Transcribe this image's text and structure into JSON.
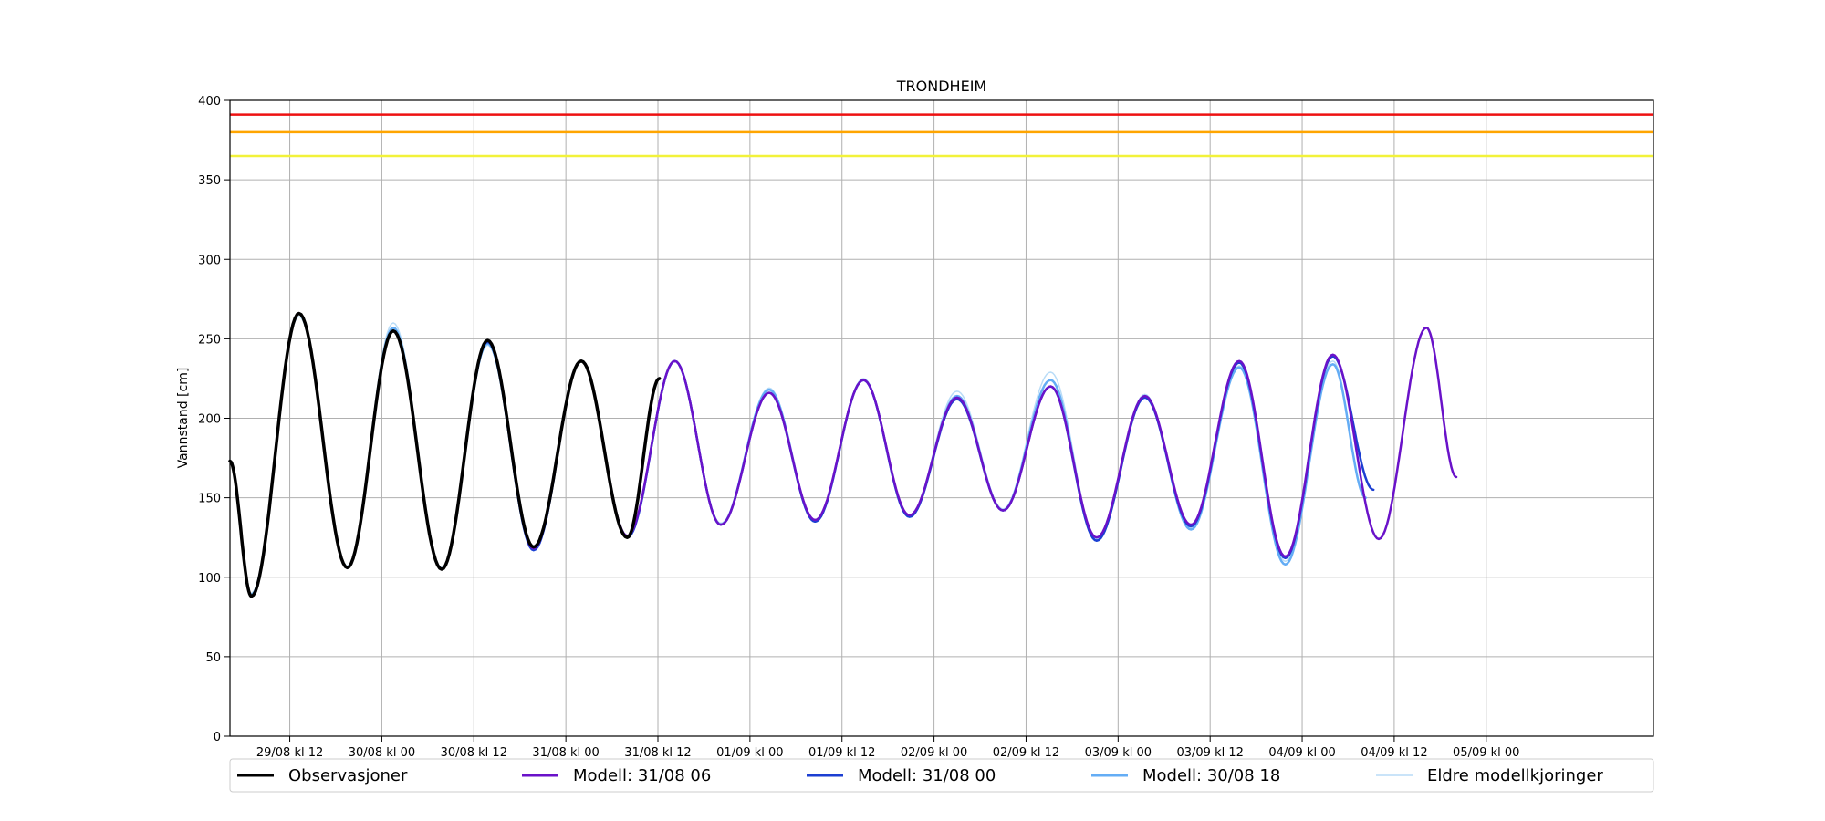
{
  "chart_data": {
    "type": "line",
    "title": "TRONDHEIM",
    "ylabel": "Vannstand [cm]",
    "xlabel": "",
    "ylim": [
      0,
      400
    ],
    "yticks": [
      0,
      50,
      100,
      150,
      200,
      250,
      300,
      350,
      400
    ],
    "x_unit": "hours",
    "xlim": [
      -7.8,
      177.8
    ],
    "xticks": [
      {
        "x": 0,
        "label": "29/08 kl 12"
      },
      {
        "x": 12,
        "label": "30/08 kl 00"
      },
      {
        "x": 24,
        "label": "30/08 kl 12"
      },
      {
        "x": 36,
        "label": "31/08 kl 00"
      },
      {
        "x": 48,
        "label": "31/08 kl 12"
      },
      {
        "x": 60,
        "label": "01/09 kl 00"
      },
      {
        "x": 72,
        "label": "01/09 kl 12"
      },
      {
        "x": 84,
        "label": "02/09 kl 00"
      },
      {
        "x": 96,
        "label": "02/09 kl 12"
      },
      {
        "x": 108,
        "label": "03/09 kl 00"
      },
      {
        "x": 120,
        "label": "03/09 kl 12"
      },
      {
        "x": 132,
        "label": "04/09 kl 00"
      },
      {
        "x": 144,
        "label": "04/09 kl 12"
      },
      {
        "x": 156,
        "label": "05/09 kl 00"
      }
    ],
    "grid": true,
    "thresholds": [
      {
        "value": 391,
        "color": "#ee1111"
      },
      {
        "value": 380,
        "color": "#ffa500"
      },
      {
        "value": 365,
        "color": "#f2f23a"
      }
    ],
    "legend_position": "bottom",
    "series": [
      {
        "name": "Eldre modellkjoringer",
        "color": "#b9dcf7",
        "width": 1.5,
        "extrema": [
          [
            -5,
            90
          ],
          [
            1.2,
            264
          ],
          [
            7.5,
            107
          ],
          [
            13.5,
            260
          ],
          [
            19.8,
            106
          ],
          [
            25.8,
            246
          ],
          [
            31.8,
            118
          ],
          [
            38,
            236
          ],
          [
            44,
            126
          ],
          [
            50.2,
            236
          ],
          [
            56.2,
            134
          ],
          [
            62.5,
            219
          ],
          [
            68.5,
            136
          ],
          [
            74.8,
            225
          ],
          [
            80.8,
            139
          ],
          [
            87,
            217
          ],
          [
            93,
            143
          ],
          [
            99.2,
            229
          ],
          [
            105.2,
            124
          ],
          [
            111.5,
            215
          ],
          [
            117.5,
            131
          ],
          [
            123.8,
            233
          ],
          [
            129.8,
            110
          ],
          [
            136,
            236
          ],
          [
            140.3,
            150
          ]
        ]
      },
      {
        "name": "Modell: 30/08 18",
        "color": "#64adf5",
        "width": 2.5,
        "extrema": [
          [
            -5,
            89
          ],
          [
            1.2,
            266
          ],
          [
            7.5,
            106
          ],
          [
            13.5,
            257
          ],
          [
            19.8,
            105
          ],
          [
            25.8,
            247
          ],
          [
            31.8,
            117
          ],
          [
            38,
            236
          ],
          [
            44,
            125
          ],
          [
            50.2,
            236
          ],
          [
            56.2,
            133
          ],
          [
            62.5,
            218
          ],
          [
            68.5,
            135
          ],
          [
            74.8,
            224
          ],
          [
            80.8,
            138
          ],
          [
            87,
            214
          ],
          [
            93,
            142
          ],
          [
            99.2,
            224
          ],
          [
            105.2,
            123
          ],
          [
            111.5,
            214
          ],
          [
            117.5,
            130
          ],
          [
            123.8,
            232
          ],
          [
            129.8,
            108
          ],
          [
            136,
            234
          ],
          [
            140.3,
            150
          ]
        ]
      },
      {
        "name": "Modell: 31/08 00",
        "color": "#1c3fd2",
        "width": 2.5,
        "extrema": [
          [
            -5,
            88
          ],
          [
            1.2,
            266
          ],
          [
            7.5,
            106
          ],
          [
            13.5,
            255
          ],
          [
            19.8,
            105
          ],
          [
            25.8,
            248
          ],
          [
            31.8,
            117
          ],
          [
            38,
            236
          ],
          [
            44,
            125
          ],
          [
            50.2,
            236
          ],
          [
            56.2,
            133
          ],
          [
            62.5,
            216
          ],
          [
            68.5,
            135
          ],
          [
            74.8,
            224
          ],
          [
            80.8,
            138
          ],
          [
            87,
            212
          ],
          [
            93,
            142
          ],
          [
            99.2,
            220
          ],
          [
            105.2,
            123
          ],
          [
            111.5,
            213
          ],
          [
            117.5,
            132
          ],
          [
            123.8,
            235
          ],
          [
            129.8,
            112
          ],
          [
            136,
            239
          ],
          [
            141.3,
            155
          ]
        ]
      },
      {
        "name": "Modell: 31/08 06",
        "color": "#6a12c9",
        "width": 2.5,
        "extrema": [
          [
            -5,
            88
          ],
          [
            1.2,
            266
          ],
          [
            7.5,
            106
          ],
          [
            13.5,
            255
          ],
          [
            19.8,
            105
          ],
          [
            25.8,
            249
          ],
          [
            31.8,
            118
          ],
          [
            38,
            236
          ],
          [
            44,
            126
          ],
          [
            50.2,
            236
          ],
          [
            56.2,
            133
          ],
          [
            62.5,
            216
          ],
          [
            68.5,
            136
          ],
          [
            74.8,
            224
          ],
          [
            80.8,
            139
          ],
          [
            87,
            213
          ],
          [
            93,
            142
          ],
          [
            99.2,
            220
          ],
          [
            105.2,
            125
          ],
          [
            111.5,
            214
          ],
          [
            117.5,
            133
          ],
          [
            123.8,
            236
          ],
          [
            129.8,
            113
          ],
          [
            136,
            240
          ],
          [
            142,
            124
          ],
          [
            148.2,
            257
          ],
          [
            152.1,
            163
          ]
        ]
      },
      {
        "name": "Observasjoner",
        "color": "#000000",
        "width": 3.5,
        "extrema": [
          [
            -7.8,
            173
          ],
          [
            -5,
            88
          ],
          [
            1.2,
            266
          ],
          [
            7.5,
            106
          ],
          [
            13.5,
            255
          ],
          [
            19.8,
            105
          ],
          [
            25.8,
            249
          ],
          [
            31.8,
            119
          ],
          [
            38,
            236
          ],
          [
            44,
            125
          ],
          [
            48.2,
            225
          ]
        ]
      }
    ],
    "legend": [
      {
        "label": "Observasjoner",
        "color": "#000000"
      },
      {
        "label": "Modell: 31/08 06",
        "color": "#6a12c9"
      },
      {
        "label": "Modell: 31/08 00",
        "color": "#1c3fd2"
      },
      {
        "label": "Modell: 30/08 18",
        "color": "#64adf5"
      },
      {
        "label": "Eldre modellkjoringer",
        "color": "#b9dcf7"
      }
    ]
  }
}
